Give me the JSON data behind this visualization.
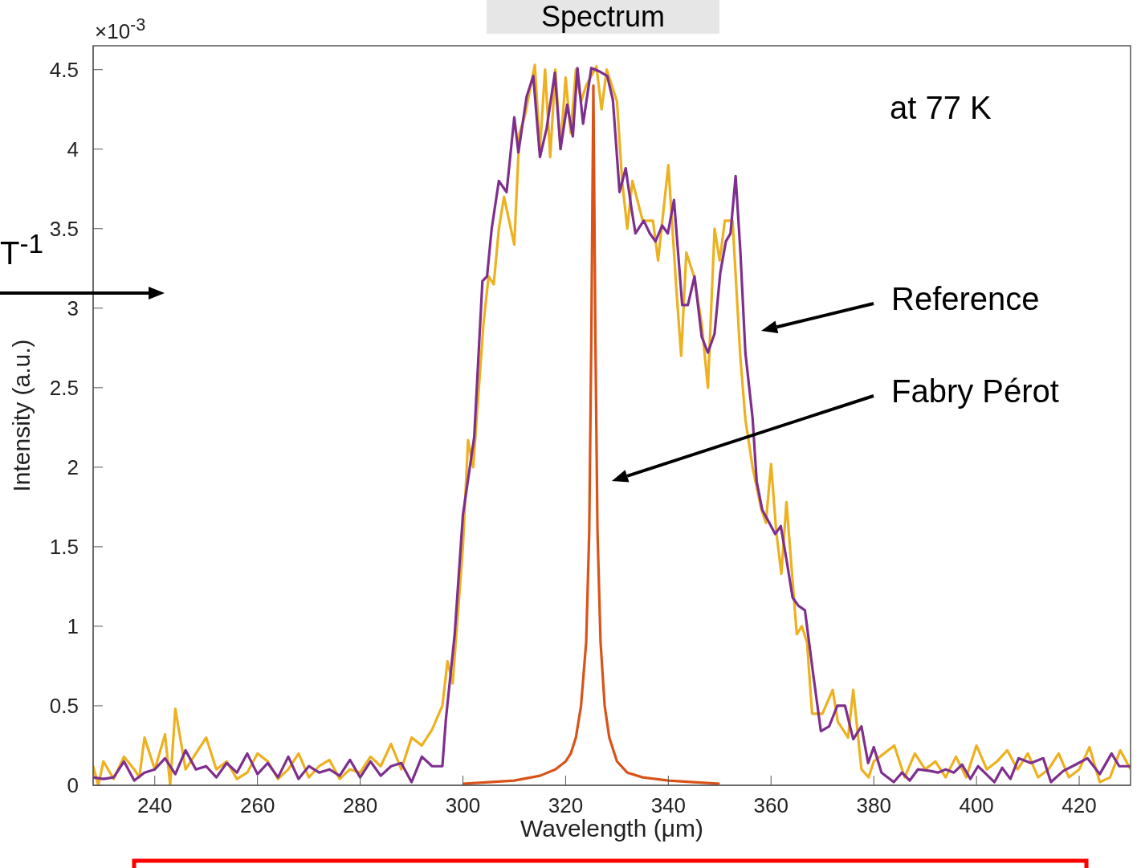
{
  "chart_data": {
    "type": "line",
    "title": "Spectrum",
    "xlabel": "Wavelength (μm)",
    "ylabel": "Intensity (a.u.)",
    "xlim": [
      228,
      430
    ],
    "xticks": [
      240,
      260,
      280,
      300,
      320,
      340,
      360,
      380,
      400,
      420
    ],
    "ylim": [
      0,
      4.65
    ],
    "yticks": [
      0,
      0.5,
      1,
      1.5,
      2,
      2.5,
      3,
      3.5,
      4,
      4.5
    ],
    "grid": false,
    "marker": "none",
    "line_style": "solid",
    "series": [
      {
        "color": "#edb120",
        "x": [
          228,
          229,
          230,
          232,
          234,
          236,
          237,
          238,
          240,
          242,
          243,
          244,
          246,
          248,
          250,
          252,
          254,
          256,
          258,
          260,
          262,
          264,
          266,
          268,
          270,
          272,
          274,
          276,
          278,
          280,
          282,
          284,
          286,
          288,
          290,
          292,
          294,
          296,
          297,
          298,
          300,
          301,
          302,
          304,
          305,
          306,
          307,
          308,
          310,
          311,
          312,
          314,
          315,
          316,
          317,
          318,
          319,
          320,
          321,
          322,
          323,
          324,
          326,
          327,
          328,
          330,
          331,
          332,
          333,
          335,
          337,
          338,
          340,
          341.6,
          342.5,
          343.5,
          345,
          346.5,
          347.7,
          349,
          350,
          351,
          352.5,
          354,
          355,
          356.4,
          358,
          359,
          360,
          361,
          362,
          363,
          365,
          366,
          367,
          368,
          370,
          372,
          373,
          375,
          376,
          377.6,
          379,
          380,
          382,
          384,
          386,
          388,
          390,
          392,
          394,
          396,
          398,
          400,
          402,
          404,
          406,
          408,
          410,
          412,
          414,
          416,
          418,
          420,
          422,
          424,
          426,
          428,
          430
        ],
        "values": [
          0.12,
          0,
          0.15,
          0.04,
          0.18,
          0.1,
          0.05,
          0.3,
          0.1,
          0.32,
          0,
          0.48,
          0.1,
          0.2,
          0.3,
          0.1,
          0.15,
          0.04,
          0.08,
          0.2,
          0.15,
          0.04,
          0.1,
          0.2,
          0.05,
          0.12,
          0.16,
          0.04,
          0.1,
          0.08,
          0.18,
          0.12,
          0.26,
          0.1,
          0.3,
          0.25,
          0.35,
          0.5,
          0.78,
          0.64,
          1.5,
          2.17,
          2,
          2.9,
          3.2,
          3.15,
          3.5,
          3.7,
          3.4,
          4.1,
          4.2,
          4.53,
          4.0,
          4.5,
          3.95,
          4.5,
          4.0,
          4.45,
          4.1,
          4.5,
          4.3,
          4.4,
          4.52,
          4.25,
          4.5,
          4.3,
          3.8,
          3.5,
          3.8,
          3.55,
          3.55,
          3.3,
          3.9,
          3.1,
          2.7,
          3.35,
          3.2,
          2.9,
          2.5,
          3.5,
          3.3,
          3.55,
          3.55,
          2.7,
          2.3,
          2.0,
          1.75,
          1.65,
          2.02,
          1.6,
          1.33,
          1.78,
          0.95,
          1.0,
          0.9,
          0.45,
          0.45,
          0.6,
          0.4,
          0.3,
          0.6,
          0.1,
          0.05,
          0.15,
          0.2,
          0.25,
          0.05,
          0.2,
          0.1,
          0.15,
          0.05,
          0.18,
          0.05,
          0.25,
          0.1,
          0.15,
          0.22,
          0.1,
          0.2,
          0.05,
          0.1,
          0.2,
          0.05,
          0.1,
          0.24,
          0.02,
          0.05,
          0.22,
          0.1
        ]
      },
      {
        "color": "#7e2f8e",
        "x": [
          228,
          230,
          232,
          234,
          236,
          238,
          240,
          242,
          244,
          246,
          248,
          250,
          252,
          254,
          256,
          258,
          260,
          262,
          264,
          266,
          268,
          270,
          272,
          274,
          276,
          278,
          280,
          282,
          284,
          286,
          288,
          290,
          292,
          294,
          296,
          296.7,
          298.4,
          300,
          302.2,
          303.8,
          304.7,
          305.6,
          307,
          308.5,
          310,
          310.8,
          312.4,
          313.7,
          315,
          316.3,
          317.9,
          319,
          320.3,
          321.4,
          322.3,
          323.4,
          325,
          326.5,
          328.1,
          329.2,
          330.5,
          331.7,
          332.8,
          333.6,
          335.2,
          336.4,
          337.5,
          338.8,
          339.9,
          341.1,
          342.7,
          343.8,
          345.1,
          346.5,
          347.7,
          349,
          350.1,
          351.2,
          352.1,
          353.1,
          354,
          355,
          356.4,
          357.2,
          358.3,
          359.5,
          360.8,
          361.9,
          363.1,
          364.2,
          365.3,
          366.6,
          368.2,
          369.7,
          371.3,
          372.9,
          374.4,
          376,
          377.6,
          378.9,
          380,
          381.5,
          383.9,
          385.5,
          387,
          388.6,
          391,
          392.5,
          394,
          395.6,
          397.2,
          398.8,
          400.3,
          401.9,
          403.5,
          405,
          406.6,
          408.2,
          410.6,
          413,
          414.5,
          416.9,
          419.3,
          421.6,
          424,
          426.3,
          427.8,
          430
        ],
        "values": [
          0.05,
          0.04,
          0.05,
          0.15,
          0.03,
          0.08,
          0.1,
          0.17,
          0.07,
          0.22,
          0.1,
          0.12,
          0.05,
          0.14,
          0.08,
          0.2,
          0.07,
          0.14,
          0.05,
          0.18,
          0.04,
          0.12,
          0.08,
          0.1,
          0.06,
          0.16,
          0.05,
          0.15,
          0.06,
          0.12,
          0.14,
          0.02,
          0.18,
          0.12,
          0.12,
          0.42,
          0.95,
          1.7,
          2.19,
          3.17,
          3.2,
          3.5,
          3.8,
          3.73,
          4.2,
          3.98,
          4.33,
          4.46,
          3.95,
          4.13,
          4.48,
          4.0,
          4.28,
          4.08,
          4.51,
          4.16,
          4.51,
          4.49,
          4.46,
          4.31,
          3.73,
          3.88,
          3.63,
          3.47,
          3.55,
          3.47,
          3.42,
          3.52,
          3.47,
          3.68,
          3.02,
          3.02,
          3.2,
          2.82,
          2.72,
          2.84,
          3.22,
          3.42,
          3.47,
          3.83,
          3.37,
          2.72,
          2.31,
          1.91,
          1.73,
          1.66,
          1.58,
          1.63,
          1.4,
          1.18,
          1.13,
          1.1,
          0.7,
          0.34,
          0.37,
          0.5,
          0.5,
          0.29,
          0.37,
          0.14,
          0.24,
          0.08,
          0.02,
          0.08,
          0.03,
          0.1,
          0.09,
          0.08,
          0.1,
          0.08,
          0.13,
          0.04,
          0.12,
          0.07,
          0.02,
          0.11,
          0.04,
          0.17,
          0.14,
          0.17,
          0.02,
          0.09,
          0.13,
          0.17,
          0.07,
          0.2,
          0.12,
          0.12
        ]
      },
      {
        "color": "#d95319",
        "x": [
          300,
          305,
          310,
          315,
          318,
          320,
          321,
          322,
          323,
          324,
          324.6,
          325,
          325.4,
          325.8,
          326.2,
          326.8,
          327.6,
          328.5,
          330,
          332,
          335,
          340,
          345,
          350
        ],
        "values": [
          0.01,
          0.02,
          0.03,
          0.06,
          0.1,
          0.15,
          0.2,
          0.3,
          0.5,
          0.9,
          1.6,
          2.8,
          4.4,
          2.8,
          1.6,
          0.9,
          0.5,
          0.3,
          0.15,
          0.08,
          0.05,
          0.03,
          0.02,
          0.01
        ]
      }
    ],
    "annotations": [
      "×10$^{-3}$",
      "at 77 K",
      "T$^{-1}$",
      "Reference",
      "Fabry Pérot"
    ]
  }
}
